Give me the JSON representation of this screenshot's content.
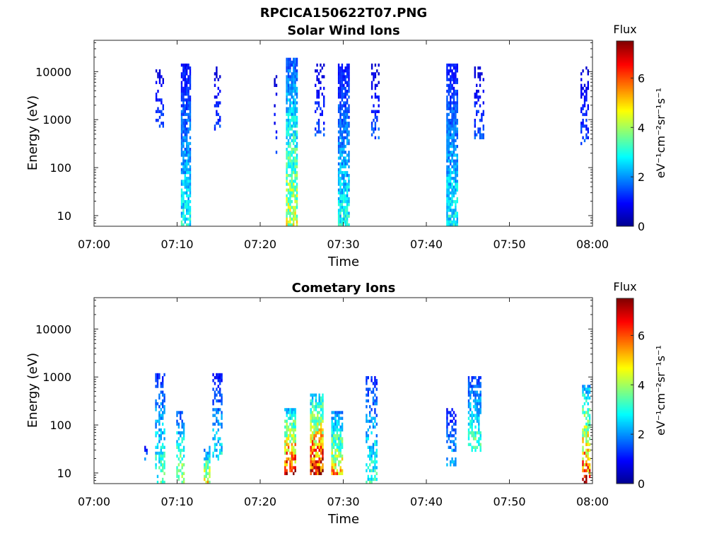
{
  "figure_title": "RPCICA150622T07.PNG",
  "colors": {
    "colormap": [
      "#00008f",
      "#0000ff",
      "#0080ff",
      "#00ffff",
      "#80ff80",
      "#ffff00",
      "#ff8000",
      "#ff0000",
      "#800000"
    ]
  },
  "chart_data": [
    {
      "type": "heatmap",
      "title": "Solar Wind Ions",
      "xlabel": "Time",
      "ylabel": "Energy (eV)",
      "y_scale": "log",
      "xlim": [
        "07:00",
        "08:00"
      ],
      "ylim": [
        6,
        45000
      ],
      "x_ticks": [
        "07:00",
        "07:10",
        "07:20",
        "07:30",
        "07:40",
        "07:50",
        "08:00"
      ],
      "y_ticks": [
        10,
        100,
        1000,
        10000
      ],
      "y_tick_labels": [
        "10",
        "100",
        "1000",
        "10000"
      ],
      "colorbar": {
        "title": "Flux",
        "range": [
          0,
          7.5
        ],
        "ticks": [
          "0",
          "2",
          "4",
          "6"
        ],
        "label": "eV⁻¹cm⁻²sr⁻¹s⁻¹"
      },
      "bursts": [
        {
          "t": 7.9,
          "e_low": 600,
          "e_high": 14000,
          "peak": 1.6,
          "width": 1.0,
          "density": 0.35
        },
        {
          "t": 11.0,
          "e_low": 6,
          "e_high": 15000,
          "peak": 3.0,
          "width": 1.1,
          "density": 0.8
        },
        {
          "t": 14.8,
          "e_low": 600,
          "e_high": 14000,
          "peak": 1.6,
          "width": 0.7,
          "density": 0.3
        },
        {
          "t": 21.8,
          "e_low": 180,
          "e_high": 12000,
          "peak": 1.4,
          "width": 0.3,
          "density": 0.2
        },
        {
          "t": 23.8,
          "e_low": 6,
          "e_high": 20000,
          "peak": 4.6,
          "width": 1.4,
          "density": 0.8
        },
        {
          "t": 27.1,
          "e_low": 450,
          "e_high": 16000,
          "peak": 1.6,
          "width": 1.1,
          "density": 0.35
        },
        {
          "t": 30.0,
          "e_low": 6,
          "e_high": 15000,
          "peak": 3.0,
          "width": 1.3,
          "density": 0.8
        },
        {
          "t": 33.8,
          "e_low": 400,
          "e_high": 15000,
          "peak": 1.6,
          "width": 0.9,
          "density": 0.4
        },
        {
          "t": 43.1,
          "e_low": 6,
          "e_high": 16000,
          "peak": 3.0,
          "width": 1.4,
          "density": 0.8
        },
        {
          "t": 46.3,
          "e_low": 400,
          "e_high": 14000,
          "peak": 1.6,
          "width": 1.1,
          "density": 0.4
        },
        {
          "t": 59.0,
          "e_low": 300,
          "e_high": 13000,
          "peak": 1.6,
          "width": 0.9,
          "density": 0.35
        }
      ]
    },
    {
      "type": "heatmap",
      "title": "Cometary Ions",
      "xlabel": "Time",
      "ylabel": "Energy (eV)",
      "y_scale": "log",
      "xlim": [
        "07:00",
        "08:00"
      ],
      "ylim": [
        6,
        45000
      ],
      "x_ticks": [
        "07:00",
        "07:10",
        "07:20",
        "07:30",
        "07:40",
        "07:50",
        "08:00"
      ],
      "y_ticks": [
        10,
        100,
        1000,
        10000
      ],
      "y_tick_labels": [
        "10",
        "100",
        "1000",
        "10000"
      ],
      "colorbar": {
        "title": "Flux",
        "range": [
          0,
          7.5
        ],
        "ticks": [
          "0",
          "2",
          "4",
          "6"
        ],
        "label": "eV⁻¹cm⁻²sr⁻¹s⁻¹"
      },
      "bursts": [
        {
          "t": 6.2,
          "e_low": 20,
          "e_high": 40,
          "peak": 2.6,
          "width": 0.3,
          "density": 0.3
        },
        {
          "t": 7.9,
          "e_low": 6,
          "e_high": 1200,
          "peak": 3.6,
          "width": 1.1,
          "density": 0.5
        },
        {
          "t": 10.4,
          "e_low": 6,
          "e_high": 200,
          "peak": 4.6,
          "width": 1.0,
          "density": 0.45
        },
        {
          "t": 13.6,
          "e_low": 6,
          "e_high": 40,
          "peak": 5.2,
          "width": 0.8,
          "density": 0.7
        },
        {
          "t": 14.8,
          "e_low": 20,
          "e_high": 1200,
          "peak": 3.0,
          "width": 1.1,
          "density": 0.5
        },
        {
          "t": 23.6,
          "e_low": 10,
          "e_high": 250,
          "peak": 7.0,
          "width": 1.4,
          "density": 0.75
        },
        {
          "t": 26.8,
          "e_low": 10,
          "e_high": 500,
          "peak": 7.2,
          "width": 1.6,
          "density": 0.8
        },
        {
          "t": 29.2,
          "e_low": 10,
          "e_high": 200,
          "peak": 5.4,
          "width": 1.3,
          "density": 0.75
        },
        {
          "t": 33.4,
          "e_low": 6,
          "e_high": 1100,
          "peak": 3.4,
          "width": 1.4,
          "density": 0.45
        },
        {
          "t": 43.0,
          "e_low": 15,
          "e_high": 250,
          "peak": 2.6,
          "width": 1.2,
          "density": 0.5
        },
        {
          "t": 45.8,
          "e_low": 30,
          "e_high": 1100,
          "peak": 3.8,
          "width": 1.6,
          "density": 0.6
        },
        {
          "t": 59.2,
          "e_low": 6,
          "e_high": 700,
          "peak": 6.8,
          "width": 0.9,
          "density": 0.6
        }
      ]
    }
  ]
}
